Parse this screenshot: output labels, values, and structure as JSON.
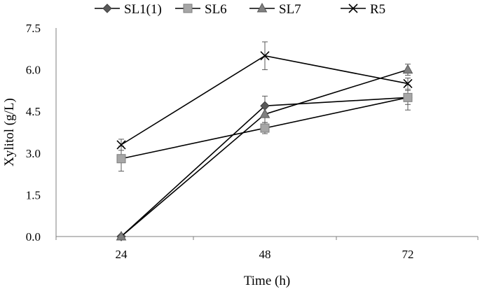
{
  "chart_data": {
    "type": "line",
    "xlabel": "Time (h)",
    "ylabel": "Xylitol (g/L)",
    "categories": [
      "24",
      "48",
      "72"
    ],
    "y_ticks": [
      "0.0",
      "1.5",
      "3.0",
      "4.5",
      "6.0",
      "7.5"
    ],
    "ylim": [
      0,
      7.5
    ],
    "grid": false,
    "legend_position": "top",
    "series": [
      {
        "name": "SL1(1)",
        "marker": "diamond",
        "fill": "#595959",
        "values": [
          0.0,
          4.7,
          5.0
        ],
        "errors": [
          0.0,
          0.35,
          0.25
        ]
      },
      {
        "name": "SL6",
        "marker": "square",
        "fill": "#a6a6a6",
        "values": [
          2.8,
          3.9,
          5.0
        ],
        "errors": [
          0.45,
          0.2,
          0.45
        ]
      },
      {
        "name": "SL7",
        "marker": "triangle",
        "fill": "#808080",
        "values": [
          0.0,
          4.4,
          6.0
        ],
        "errors": [
          0.0,
          0.3,
          0.2
        ]
      },
      {
        "name": "R5",
        "marker": "x",
        "fill": "#000000",
        "values": [
          3.3,
          6.5,
          5.5
        ],
        "errors": [
          0.2,
          0.5,
          0.2
        ]
      }
    ]
  }
}
